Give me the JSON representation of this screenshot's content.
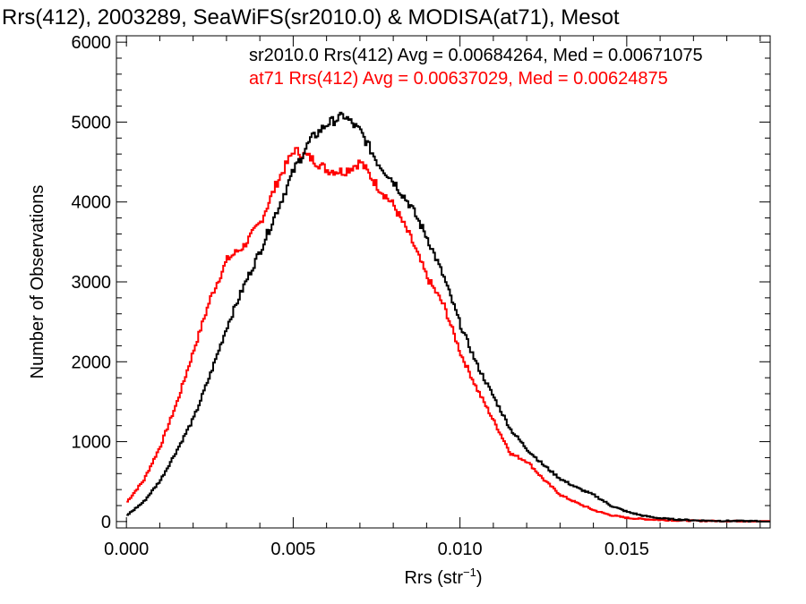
{
  "chart_data": {
    "type": "line",
    "step": true,
    "title": "Rrs(412), 2003289, SeaWiFS(sr2010.0) & MODISA(at71), Mesot",
    "xlabel": "Rrs (str",
    "xlabel_sup": "−1",
    "xlabel_close": ")",
    "ylabel": "Number of Observations",
    "xlim": [
      -0.0003,
      0.0193
    ],
    "ylim": [
      -80,
      6080
    ],
    "xticks": [
      0.0,
      0.005,
      0.01,
      0.015
    ],
    "xtick_labels": [
      "0.000",
      "0.005",
      "0.010",
      "0.015"
    ],
    "yticks": [
      0,
      1000,
      2000,
      3000,
      4000,
      5000,
      6000
    ],
    "ytick_labels": [
      "0",
      "1000",
      "2000",
      "3000",
      "4000",
      "5000",
      "6000"
    ],
    "grid": false,
    "annotations": [
      {
        "text": "sr2010.0 Rrs(412) Avg = 0.00684264, Med = 0.00671075",
        "color": "#000000"
      },
      {
        "text": "at71 Rrs(412) Avg = 0.00637029, Med = 0.00624875",
        "color": "#ff0000"
      }
    ],
    "series": [
      {
        "name": "sr2010.0",
        "color": "#000000",
        "x": [
          0.0,
          0.0005,
          0.001,
          0.0015,
          0.002,
          0.0025,
          0.003,
          0.0035,
          0.004,
          0.0045,
          0.005,
          0.0055,
          0.006,
          0.0065,
          0.007,
          0.0075,
          0.008,
          0.0085,
          0.009,
          0.0095,
          0.01,
          0.0105,
          0.011,
          0.0115,
          0.012,
          0.0125,
          0.013,
          0.0135,
          0.014,
          0.0145,
          0.015,
          0.0155,
          0.016,
          0.0165,
          0.017,
          0.0175,
          0.018,
          0.0185,
          0.019
        ],
        "y": [
          80,
          250,
          520,
          900,
          1300,
          1850,
          2450,
          2950,
          3400,
          3900,
          4400,
          4780,
          4980,
          5080,
          4880,
          4500,
          4250,
          3950,
          3550,
          3050,
          2450,
          1950,
          1550,
          1150,
          900,
          700,
          530,
          420,
          330,
          200,
          120,
          70,
          40,
          25,
          15,
          10,
          8,
          6,
          4
        ]
      },
      {
        "name": "at71",
        "color": "#ff0000",
        "x": [
          0.0,
          0.0005,
          0.001,
          0.0015,
          0.002,
          0.0025,
          0.003,
          0.0035,
          0.004,
          0.0045,
          0.005,
          0.0055,
          0.006,
          0.0065,
          0.007,
          0.0075,
          0.008,
          0.0085,
          0.009,
          0.0095,
          0.01,
          0.0105,
          0.011,
          0.0115,
          0.012,
          0.0125,
          0.013,
          0.0135,
          0.014,
          0.0145,
          0.015,
          0.0155,
          0.016,
          0.0165,
          0.017,
          0.0175,
          0.018,
          0.0185,
          0.019
        ],
        "y": [
          250,
          520,
          950,
          1500,
          2150,
          2800,
          3280,
          3450,
          3750,
          4250,
          4650,
          4550,
          4400,
          4380,
          4500,
          4200,
          3950,
          3550,
          3050,
          2700,
          2100,
          1650,
          1250,
          850,
          750,
          520,
          330,
          230,
          140,
          80,
          45,
          30,
          20,
          14,
          10,
          8,
          6,
          4,
          2
        ]
      }
    ]
  }
}
